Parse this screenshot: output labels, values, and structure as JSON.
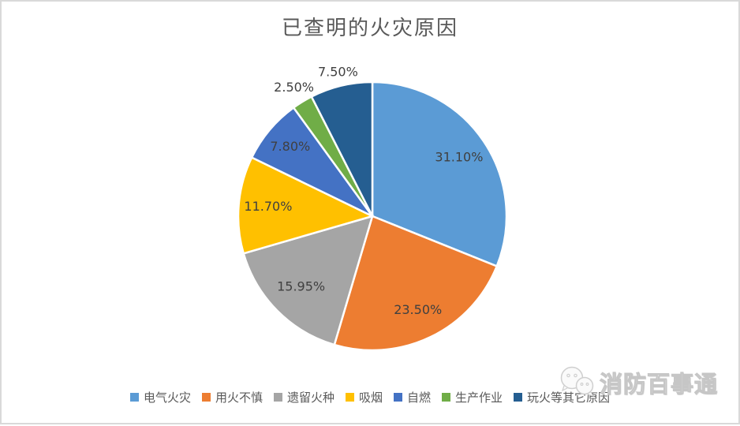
{
  "chart_data": {
    "type": "pie",
    "title": "已查明的火灾原因",
    "start_angle_deg": 0,
    "direction": "clockwise",
    "legend_position": "bottom",
    "grid": false,
    "slices": [
      {
        "label": "电气火灾",
        "value": 31.1,
        "display": "31.10%",
        "color": "#5B9BD5",
        "label_position": "inside",
        "label_r": 0.78
      },
      {
        "label": "用火不慎",
        "value": 23.5,
        "display": "23.50%",
        "color": "#ED7D31",
        "label_position": "inside",
        "label_r": 0.78
      },
      {
        "label": "遗留火种",
        "value": 15.95,
        "display": "15.95%",
        "color": "#A5A5A5",
        "label_position": "inside",
        "label_r": 0.75
      },
      {
        "label": "吸烟",
        "value": 11.7,
        "display": "11.70%",
        "color": "#FFC000",
        "label_position": "inside",
        "label_r": 0.78
      },
      {
        "label": "自燃",
        "value": 7.8,
        "display": "7.80%",
        "color": "#4472C4",
        "label_position": "inside",
        "label_r": 0.8
      },
      {
        "label": "生产作业",
        "value": 2.5,
        "display": "2.50%",
        "color": "#70AD47",
        "label_position": "outside",
        "label_r": 1.12
      },
      {
        "label": "玩火等其它原因",
        "value": 7.5,
        "display": "7.50%",
        "color": "#255E91",
        "label_position": "outside",
        "label_r": 1.1
      }
    ]
  },
  "watermark": {
    "text": "消防百事通",
    "icon": "wechat-icon"
  },
  "colors": {
    "frame_border": "#d9d9d9",
    "title_text": "#595959",
    "label_text": "#404040",
    "legend_text": "#595959",
    "slice_divider": "#ffffff"
  }
}
